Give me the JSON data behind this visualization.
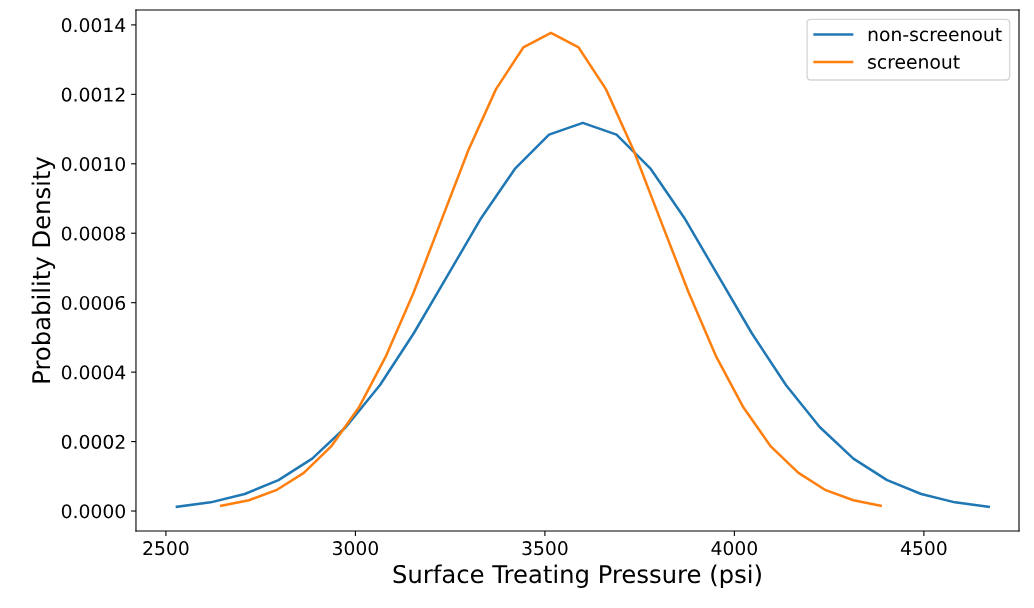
{
  "chart_data": {
    "type": "line",
    "xlabel": "Surface Treating Pressure (psi)",
    "ylabel": "Probability Density",
    "series": [
      {
        "name": "non-screenout",
        "color": "#1f77b4",
        "x": [
          2529,
          2618,
          2708,
          2797,
          2886,
          2975,
          3065,
          3154,
          3243,
          3332,
          3422,
          3511,
          3600,
          3689,
          3778,
          3868,
          3957,
          4046,
          4136,
          4225,
          4314,
          4403,
          4493,
          4582,
          4671
        ],
        "values": [
          1.2e-05,
          2.5e-05,
          4.9e-05,
          8.9e-05,
          0.000151,
          0.000242,
          0.000363,
          0.000512,
          0.000678,
          0.000844,
          0.000987,
          0.001084,
          0.001118,
          0.001084,
          0.000987,
          0.000844,
          0.000678,
          0.000512,
          0.000363,
          0.000242,
          0.000151,
          8.9e-05,
          4.9e-05,
          2.5e-05,
          1.2e-05
        ]
      },
      {
        "name": "screenout",
        "color": "#ff7f0e",
        "x": [
          2646,
          2719,
          2791,
          2864,
          2936,
          3009,
          3081,
          3154,
          3226,
          3298,
          3371,
          3443,
          3516,
          3589,
          3661,
          3734,
          3806,
          3879,
          3951,
          4024,
          4096,
          4169,
          4241,
          4314,
          4386
        ],
        "values": [
          1.5e-05,
          3.1e-05,
          6e-05,
          0.00011,
          0.000186,
          0.000298,
          0.000447,
          0.00063,
          0.000835,
          0.001039,
          0.001215,
          0.001335,
          0.001377,
          0.001335,
          0.001215,
          0.001039,
          0.000835,
          0.00063,
          0.000447,
          0.000298,
          0.000186,
          0.00011,
          6e-05,
          3.1e-05,
          1.5e-05
        ]
      }
    ],
    "xlim": [
      2421,
      4751
    ],
    "xticks": [
      2500,
      3000,
      3500,
      4000,
      4500
    ],
    "ylim": [
      -5.76e-05,
      0.001443
    ],
    "yticks": [
      {
        "value": 0,
        "label": "0.0000"
      },
      {
        "value": 0.0002,
        "label": "0.0002"
      },
      {
        "value": 0.0004,
        "label": "0.0004"
      },
      {
        "value": 0.0006,
        "label": "0.0006"
      },
      {
        "value": 0.0008,
        "label": "0.0008"
      },
      {
        "value": 0.001,
        "label": "0.0010"
      },
      {
        "value": 0.0012,
        "label": "0.0012"
      },
      {
        "value": 0.0014,
        "label": "0.0014"
      }
    ],
    "grid": false,
    "legend": "top right",
    "marker": "none",
    "line_style": "solid"
  }
}
